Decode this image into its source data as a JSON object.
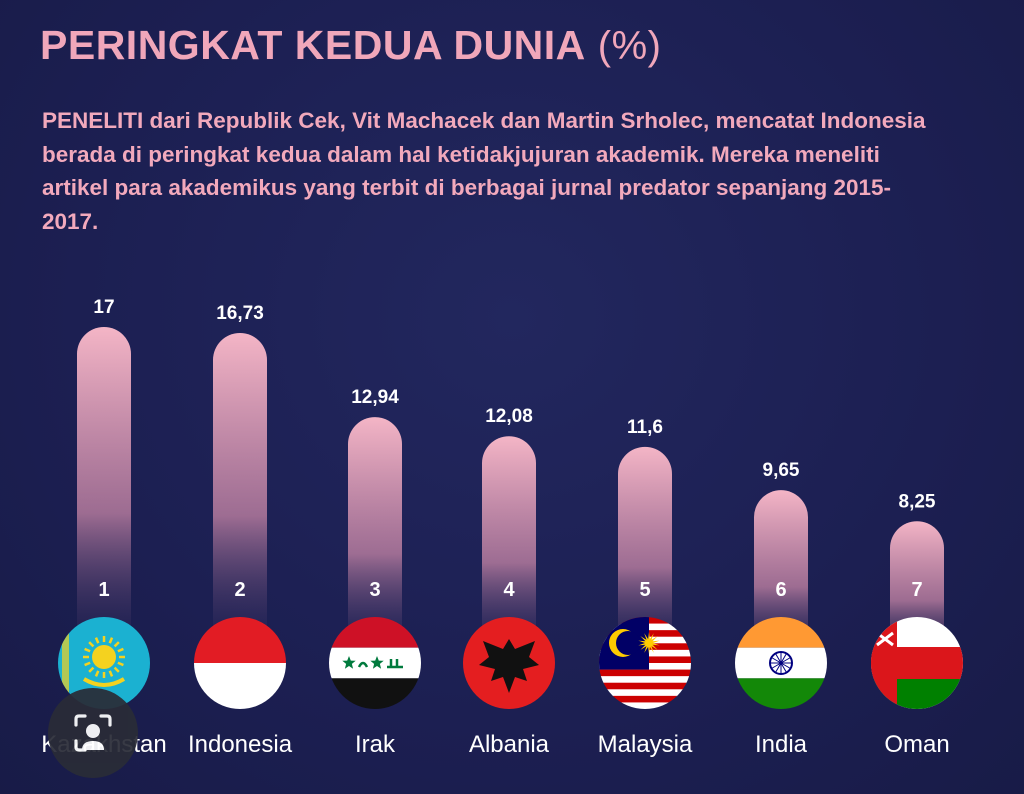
{
  "title": "PERINGKAT KEDUA DUNIA",
  "title_unit": "(%)",
  "description": "PENELITI dari Republik Cek, Vit Machacek dan Martin Srholec, mencatat Indonesia berada di peringkat kedua dalam hal ketidakjujuran akademik. Mereka meneliti artikel para akademikus yang terbit di berbagai jurnal predator sepanjang 2015-2017.",
  "colors": {
    "background": "#1c1f52",
    "accent_pink": "#f0a7ba",
    "bar_top": "#f4b5c6",
    "bar_bottom": "#1c1f52"
  },
  "chart_data": {
    "type": "bar",
    "title": "PERINGKAT KEDUA DUNIA",
    "ylabel": "",
    "xlabel": "",
    "ylim": [
      0,
      17
    ],
    "categories": [
      "Kazakhstan",
      "Indonesia",
      "Irak",
      "Albania",
      "Malaysia",
      "India",
      "Oman"
    ],
    "values": [
      17,
      16.73,
      12.94,
      12.08,
      11.6,
      9.65,
      8.25
    ],
    "value_labels": [
      "17",
      "16,73",
      "12,94",
      "12,08",
      "11,6",
      "9,65",
      "8,25"
    ],
    "ranks": [
      "1",
      "2",
      "3",
      "4",
      "5",
      "6",
      "7"
    ],
    "flags": [
      "kazakhstan-flag",
      "indonesia-flag",
      "iraq-flag",
      "albania-flag",
      "malaysia-flag",
      "india-flag",
      "oman-flag"
    ],
    "grid": false,
    "legend": "none"
  },
  "overlay": {
    "icon": "lens-search-icon"
  }
}
